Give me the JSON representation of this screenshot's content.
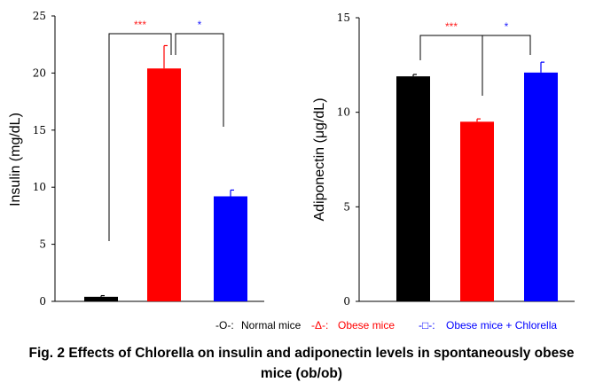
{
  "chart_data": [
    {
      "type": "bar",
      "ylabel": "Insulin (mg/dL)",
      "ylim": [
        0,
        25
      ],
      "yticks": [
        0,
        5,
        10,
        15,
        20,
        25
      ],
      "categories": [
        "Normal mice",
        "Obese mice",
        "Obese mice + Chlorella"
      ],
      "values": [
        0.4,
        20.4,
        9.2
      ],
      "errors": [
        0.1,
        2.0,
        0.55
      ],
      "colors": [
        "#000000",
        "#ff0000",
        "#0000ff"
      ],
      "significance": [
        {
          "from": 0,
          "to": 1,
          "label": "***",
          "color": "#ff2020"
        },
        {
          "from": 1,
          "to": 2,
          "label": "*",
          "color": "#2020ff"
        }
      ]
    },
    {
      "type": "bar",
      "ylabel": "Adiponectin (μg/dL)",
      "ylim": [
        0,
        15
      ],
      "yticks": [
        0,
        5,
        10,
        15
      ],
      "categories": [
        "Normal mice",
        "Obese mice",
        "Obese mice + Chlorella"
      ],
      "values": [
        11.9,
        9.5,
        12.1
      ],
      "errors": [
        0.1,
        0.15,
        0.55
      ],
      "colors": [
        "#000000",
        "#ff0000",
        "#0000ff"
      ],
      "significance": [
        {
          "from": 0,
          "to": 1,
          "label": "***",
          "color": "#ff2020"
        },
        {
          "from": 1,
          "to": 2,
          "label": "*",
          "color": "#2020ff"
        }
      ]
    }
  ],
  "legend": [
    {
      "marker": "-O-:",
      "label": "Normal mice",
      "color": "#000000"
    },
    {
      "marker": "-Δ-:",
      "label": "Obese mice",
      "color": "#ff0000"
    },
    {
      "marker": "-□-:",
      "label": "Obese mice + Chlorella",
      "color": "#0000ff"
    }
  ],
  "caption": {
    "line1": "Fig. 2 Effects of Chlorella on insulin and adiponectin levels in spontaneously obese",
    "line2": "mice (ob/ob)"
  }
}
